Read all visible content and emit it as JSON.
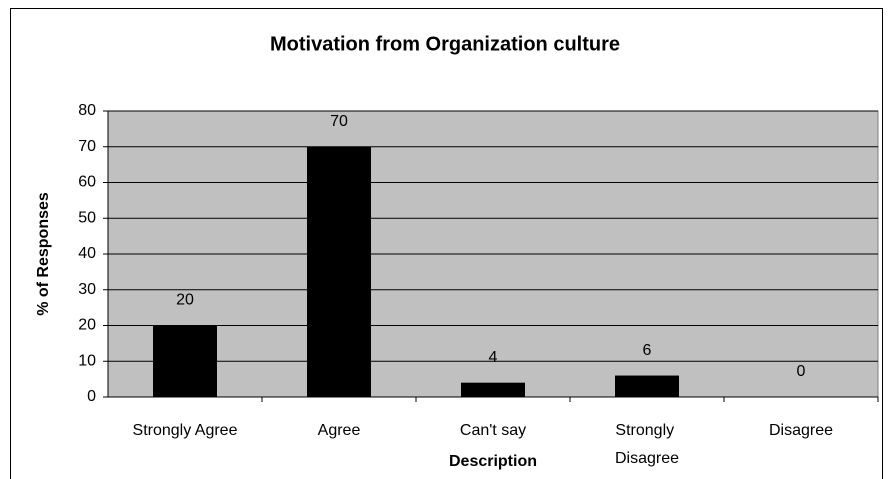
{
  "chart_data": {
    "type": "bar",
    "title": "Motivation from Organization culture",
    "xlabel": "Description",
    "ylabel": "% of Responses",
    "categories": [
      "Strongly Agree",
      "Agree",
      "Can't say",
      "Strongly Disagree",
      "Disagree"
    ],
    "values": [
      20,
      70,
      4,
      6,
      0
    ],
    "color": "#000000",
    "ylim": [
      0,
      80
    ],
    "yticks": [
      0,
      10,
      20,
      30,
      40,
      50,
      60,
      70,
      80
    ],
    "grid": true
  }
}
